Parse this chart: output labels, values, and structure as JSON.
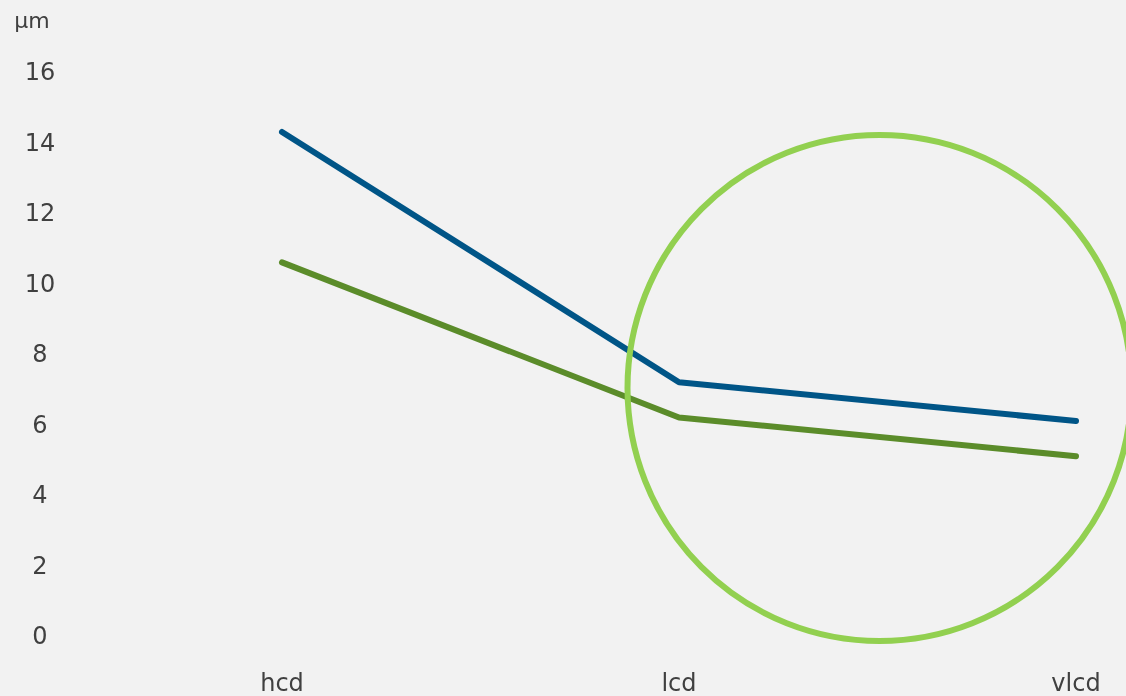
{
  "chart_data": {
    "type": "line",
    "ylabel": "µm",
    "categories": [
      "hcd",
      "lcd",
      "vlcd"
    ],
    "series": [
      {
        "color": "#005587",
        "values": [
          14.3,
          7.2,
          6.1
        ]
      },
      {
        "color": "#5b8c2a",
        "values": [
          10.6,
          6.2,
          5.1
        ]
      }
    ],
    "ylim": [
      0,
      16
    ],
    "yticks": [
      0,
      2,
      4,
      6,
      8,
      10,
      12,
      14,
      16
    ],
    "grid": false
  }
}
